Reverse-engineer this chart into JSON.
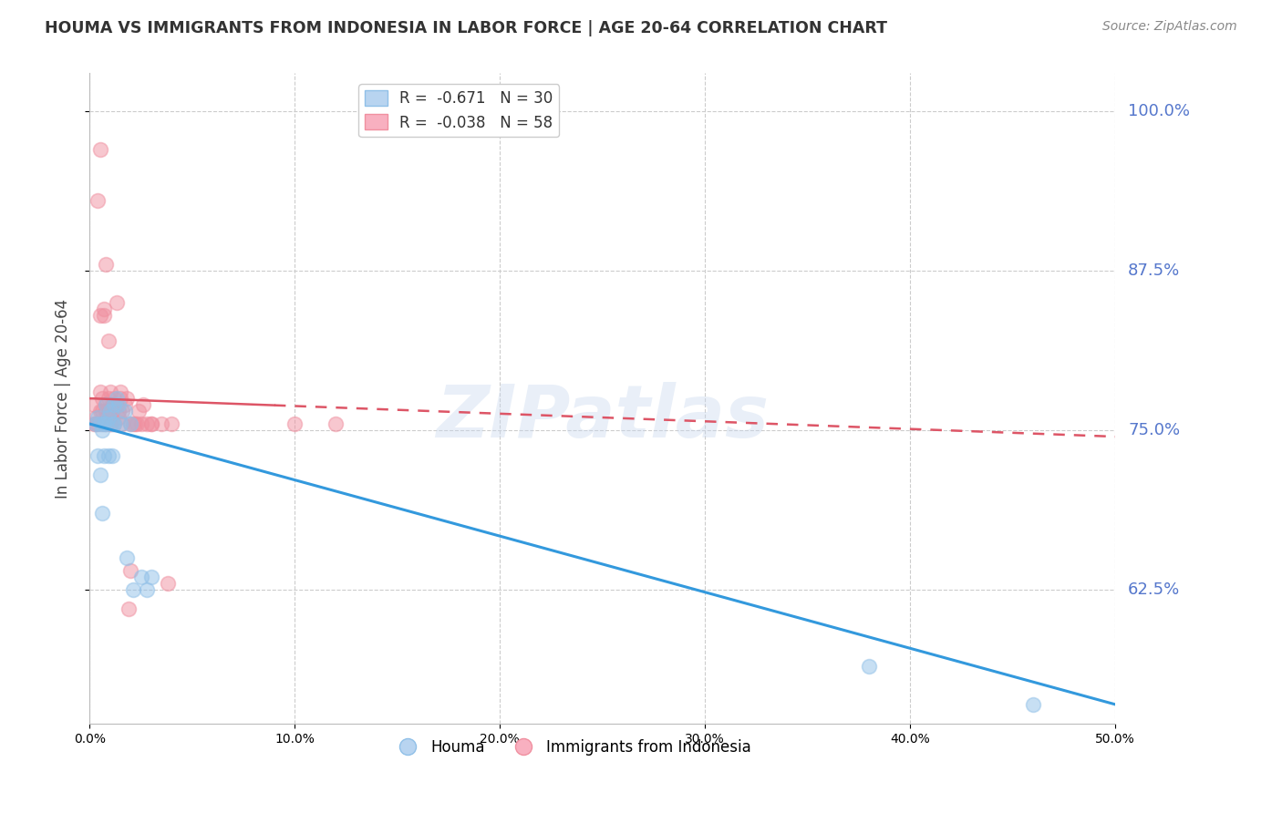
{
  "title": "HOUMA VS IMMIGRANTS FROM INDONESIA IN LABOR FORCE | AGE 20-64 CORRELATION CHART",
  "source": "Source: ZipAtlas.com",
  "ylabel": "In Labor Force | Age 20-64",
  "xlim": [
    0.0,
    0.5
  ],
  "ylim": [
    0.52,
    1.03
  ],
  "yticks": [
    0.625,
    0.75,
    0.875,
    1.0
  ],
  "xticks": [
    0.0,
    0.1,
    0.2,
    0.3,
    0.4,
    0.5
  ],
  "houma_color": "#90c0e8",
  "houma_edge": "#90c0e8",
  "indonesia_color": "#f090a0",
  "indonesia_edge": "#f090a0",
  "trend_houma_color": "#3399dd",
  "trend_indonesia_color": "#dd5566",
  "trend_houma_x0": 0.0,
  "trend_houma_y0": 0.755,
  "trend_houma_x1": 0.5,
  "trend_houma_y1": 0.535,
  "trend_indonesia_x0": 0.0,
  "trend_indonesia_y0": 0.775,
  "trend_indonesia_x1": 0.5,
  "trend_indonesia_y1": 0.745,
  "houma_x": [
    0.003,
    0.004,
    0.004,
    0.005,
    0.005,
    0.006,
    0.006,
    0.007,
    0.007,
    0.008,
    0.008,
    0.009,
    0.009,
    0.01,
    0.011,
    0.011,
    0.012,
    0.012,
    0.013,
    0.014,
    0.015,
    0.017,
    0.018,
    0.02,
    0.021,
    0.38,
    0.46,
    0.025,
    0.028,
    0.03
  ],
  "houma_y": [
    0.755,
    0.76,
    0.73,
    0.755,
    0.715,
    0.75,
    0.685,
    0.755,
    0.73,
    0.755,
    0.77,
    0.73,
    0.76,
    0.765,
    0.755,
    0.73,
    0.755,
    0.77,
    0.775,
    0.77,
    0.755,
    0.765,
    0.65,
    0.755,
    0.625,
    0.565,
    0.535,
    0.635,
    0.625,
    0.635
  ],
  "indonesia_x": [
    0.002,
    0.002,
    0.003,
    0.003,
    0.004,
    0.004,
    0.005,
    0.005,
    0.005,
    0.006,
    0.006,
    0.006,
    0.007,
    0.007,
    0.008,
    0.008,
    0.008,
    0.009,
    0.009,
    0.009,
    0.01,
    0.01,
    0.01,
    0.01,
    0.011,
    0.011,
    0.012,
    0.012,
    0.013,
    0.013,
    0.014,
    0.014,
    0.015,
    0.015,
    0.016,
    0.016,
    0.017,
    0.018,
    0.019,
    0.02,
    0.021,
    0.022,
    0.023,
    0.024,
    0.025,
    0.026,
    0.028,
    0.03,
    0.035,
    0.038,
    0.04,
    0.1,
    0.12,
    0.005,
    0.008,
    0.02,
    0.03
  ],
  "indonesia_y": [
    0.77,
    0.755,
    0.755,
    0.76,
    0.93,
    0.755,
    0.78,
    0.765,
    0.84,
    0.765,
    0.775,
    0.755,
    0.84,
    0.845,
    0.77,
    0.755,
    0.765,
    0.775,
    0.82,
    0.765,
    0.78,
    0.755,
    0.755,
    0.76,
    0.77,
    0.765,
    0.775,
    0.755,
    0.77,
    0.85,
    0.76,
    0.765,
    0.78,
    0.775,
    0.765,
    0.755,
    0.77,
    0.775,
    0.61,
    0.64,
    0.755,
    0.755,
    0.755,
    0.765,
    0.755,
    0.77,
    0.755,
    0.755,
    0.755,
    0.63,
    0.755,
    0.755,
    0.755,
    0.97,
    0.88,
    0.755,
    0.755
  ],
  "watermark": "ZIPatlas",
  "background_color": "#ffffff"
}
